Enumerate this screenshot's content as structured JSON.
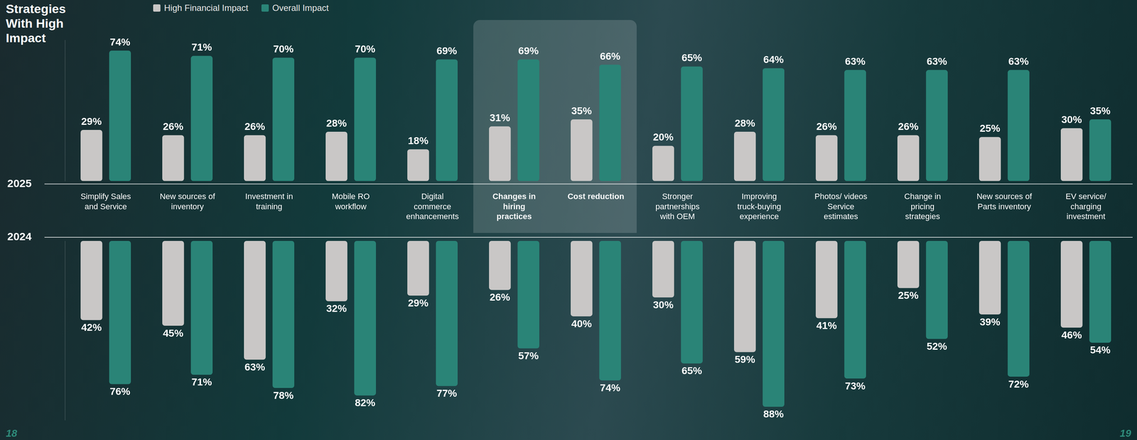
{
  "title": "Strategies With High Impact",
  "annotations": [
    "18",
    "19"
  ],
  "chart_data": [
    {
      "type": "bar",
      "title": "2025",
      "categories": [
        "Simplify Sales and Service",
        "New sources of inventory",
        "Investment in training",
        "Mobile RO workflow",
        "Digital commerce enhancements",
        "Changes in hiring practices",
        "Cost reduction",
        "Stronger partnerships with OEM",
        "Improving truck-buying experience",
        "Photos/ videos Service estimates",
        "Change in pricing strategies",
        "New sources of Parts inventory",
        "EV service/ charging investment"
      ],
      "series": [
        {
          "name": "High Financial Impact",
          "color": "#c9c7c6",
          "values": [
            29,
            26,
            26,
            28,
            18,
            31,
            35,
            20,
            28,
            26,
            26,
            25,
            30
          ],
          "value_labels": [
            "29%",
            "26%",
            "26%",
            "28%",
            "18%",
            "31%",
            "35%",
            "20%",
            "28%",
            "26%",
            "26%",
            "25%",
            "30%"
          ]
        },
        {
          "name": "Overall Impact",
          "color": "#2a8477",
          "values": [
            74,
            71,
            70,
            70,
            69,
            69,
            66,
            65,
            64,
            63,
            63,
            63,
            35
          ],
          "value_labels": [
            "74%",
            "71%",
            "70%",
            "70%",
            "69%",
            "69%",
            "66%",
            "65%",
            "64%",
            "63%",
            "63%",
            "63%",
            "35%"
          ]
        }
      ],
      "ylim": [
        0,
        80
      ],
      "yticks": [
        0,
        80
      ],
      "grid": false,
      "legend": "top",
      "data_labels": true,
      "tick_labels": "x"
    },
    {
      "type": "bar",
      "title": "2024",
      "categories": [
        "Simplify Sales and Service",
        "New sources of inventory",
        "Investment in training",
        "Mobile RO workflow",
        "Digital commerce enhancements",
        "Changes in hiring practices",
        "Cost reduction",
        "Stronger partnerships with OEM",
        "Improving truck-buying experience",
        "Photos/ videos Service estimates",
        "Change in pricing strategies",
        "New sources of Parts inventory",
        "EV service/ charging investment"
      ],
      "series": [
        {
          "name": "High Financial Impact",
          "color": "#c9c7c6",
          "values": [
            42,
            45,
            63,
            32,
            29,
            26,
            40,
            30,
            59,
            41,
            25,
            39,
            46
          ],
          "value_labels": [
            "42%",
            "45%",
            "63%",
            "32%",
            "29%",
            "26%",
            "40%",
            "30%",
            "59%",
            "41%",
            "25%",
            "39%",
            "46%"
          ]
        },
        {
          "name": "Overall Impact",
          "color": "#2a8477",
          "values": [
            76,
            71,
            78,
            82,
            77,
            57,
            74,
            65,
            88,
            73,
            52,
            72,
            54
          ],
          "value_labels": [
            "76%",
            "71%",
            "78%",
            "82%",
            "77%",
            "57%",
            "74%",
            "65%",
            "88%",
            "73%",
            "52%",
            "72%",
            "54%"
          ]
        }
      ],
      "ylim": [
        0,
        95
      ],
      "yticks": [
        0,
        95
      ],
      "grid": false,
      "data_labels": true,
      "tick_labels": false
    }
  ]
}
